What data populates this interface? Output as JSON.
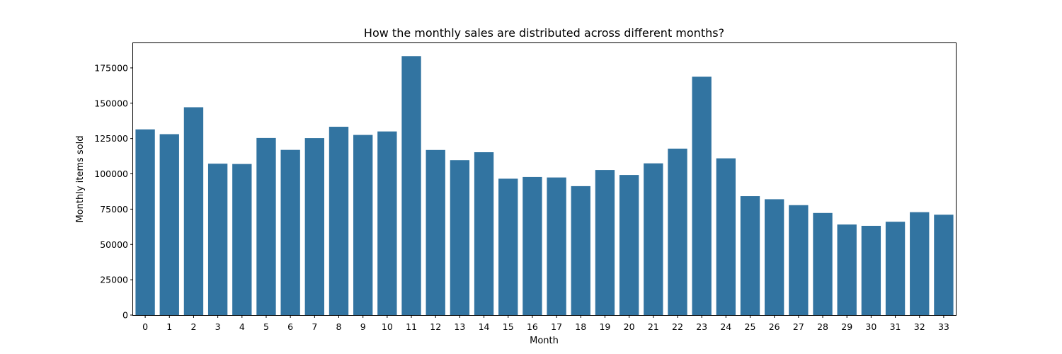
{
  "chart_data": {
    "type": "bar",
    "title": "How the monthly sales are distributed across different months?",
    "xlabel": "Month",
    "ylabel": "Monthly items sold",
    "categories": [
      "0",
      "1",
      "2",
      "3",
      "4",
      "5",
      "6",
      "7",
      "8",
      "9",
      "10",
      "11",
      "12",
      "13",
      "14",
      "15",
      "16",
      "17",
      "18",
      "19",
      "20",
      "21",
      "22",
      "23",
      "24",
      "25",
      "26",
      "27",
      "28",
      "29",
      "30",
      "31",
      "32",
      "33"
    ],
    "values": [
      131479,
      128090,
      147142,
      107190,
      106970,
      125381,
      116966,
      125291,
      133332,
      127541,
      130009,
      183342,
      116899,
      109687,
      115297,
      96556,
      97790,
      97429,
      91280,
      102721,
      99208,
      107422,
      117845,
      168755,
      110971,
      84198,
      82014,
      77827,
      72295,
      64114,
      63187,
      66079,
      72843,
      71056
    ],
    "yticks": [
      0,
      25000,
      50000,
      75000,
      100000,
      125000,
      150000,
      175000
    ],
    "ylim": [
      0,
      192500
    ],
    "bar_color": "#3274a1",
    "grid": false,
    "legend": "none"
  }
}
